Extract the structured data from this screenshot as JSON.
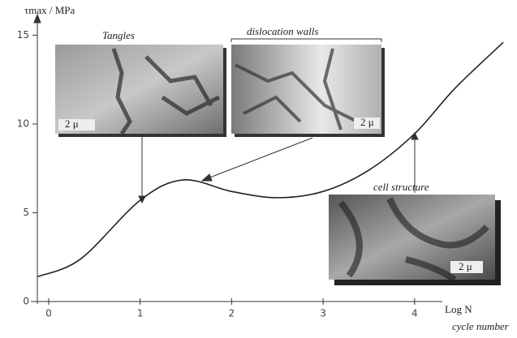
{
  "chart_data": {
    "type": "line",
    "y_label": "τmax / MPa",
    "x_label": "Log N",
    "x_sublabel": "cycle number",
    "x": [
      -0.12,
      0.35,
      1,
      1.47,
      2,
      2.5,
      3,
      3.5,
      4,
      4.44,
      4.97
    ],
    "values": [
      1.4,
      2.4,
      5.7,
      6.85,
      6.2,
      5.85,
      6.2,
      7.4,
      9.45,
      12,
      14.6
    ],
    "color": "#222222",
    "xlim": [
      -0.13,
      5.0
    ],
    "xticks": [
      0,
      1,
      2,
      3,
      4
    ],
    "ylim": [
      0,
      15.5
    ],
    "yticks": [
      0,
      5,
      10,
      15
    ],
    "annotations": [
      "Tangles",
      "dislocation walls",
      "cell structure",
      "2 μ",
      "2 μ",
      "2 μ"
    ]
  }
}
